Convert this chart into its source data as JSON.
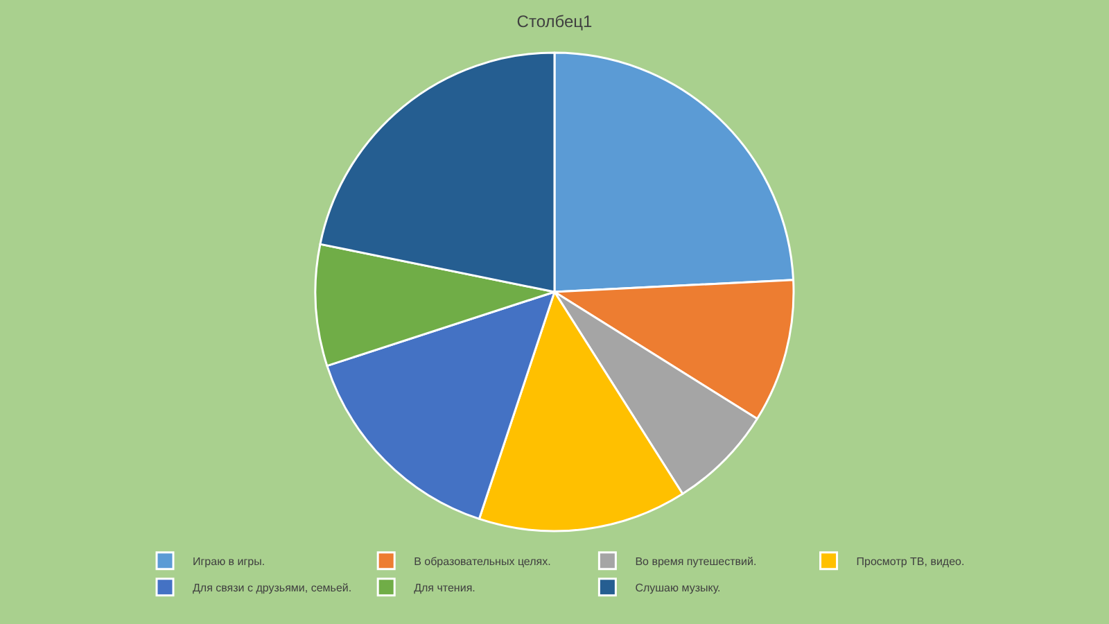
{
  "chart_data": {
    "type": "pie",
    "title": "Столбец1",
    "categories": [
      "Играю в игры.",
      "В образовательных целях.",
      "Во время путешествий.",
      "Просмотр ТВ, видео.",
      "Для связи с друзьями, семьей.",
      "Для чтения.",
      "Слушаю музыку."
    ],
    "values": [
      24.2,
      9.7,
      7.1,
      14.1,
      14.9,
      8.2,
      21.8
    ],
    "colors": [
      "#5b9bd5",
      "#ed7d31",
      "#a5a5a5",
      "#ffc000",
      "#4472c4",
      "#70ad47",
      "#255e91"
    ],
    "legend": "bottom"
  }
}
